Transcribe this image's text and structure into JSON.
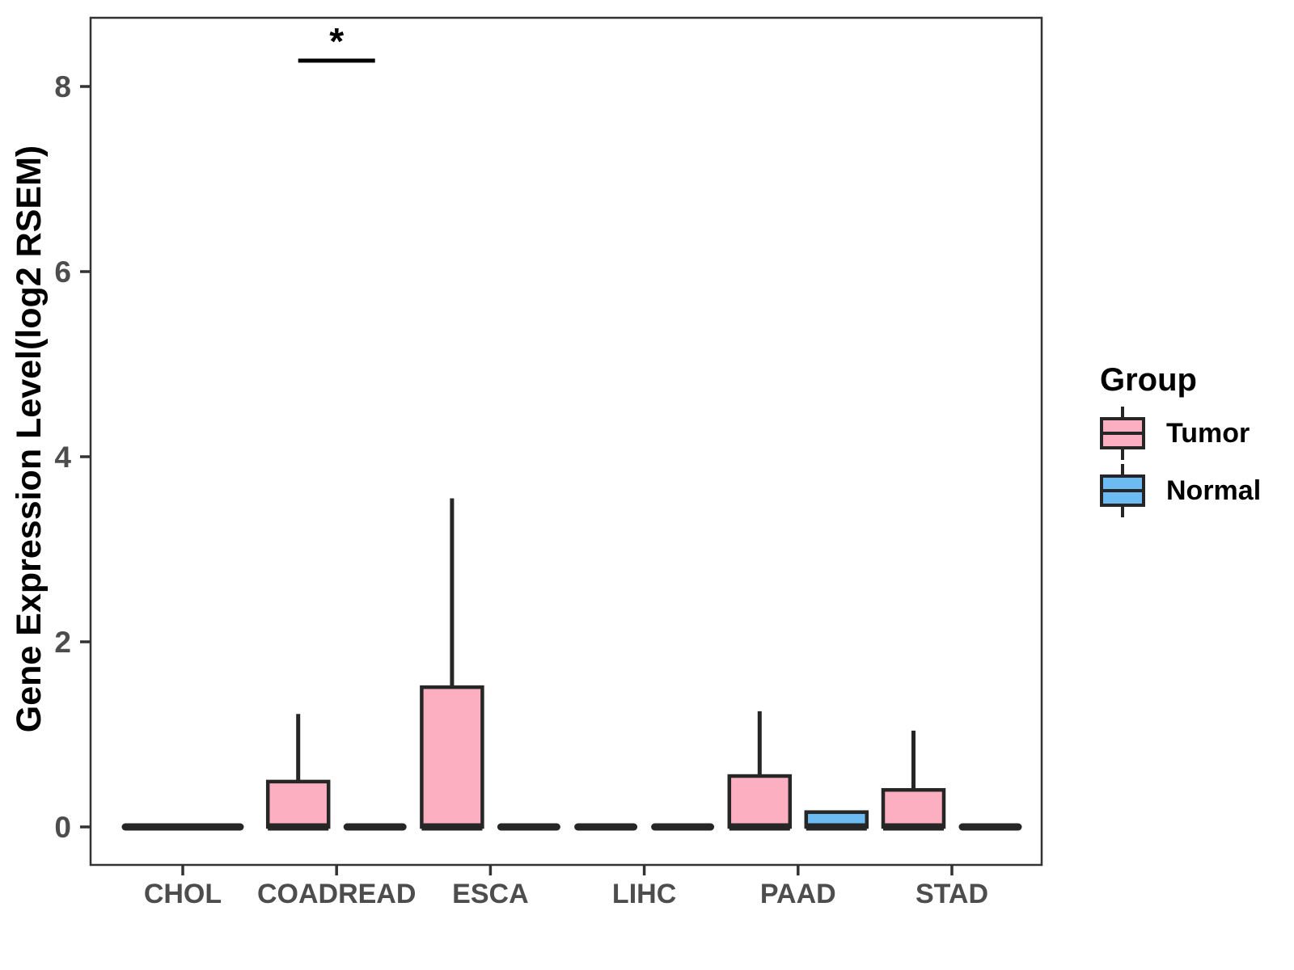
{
  "chart_data": {
    "type": "boxplot",
    "title": "",
    "xlabel": "",
    "ylabel": "Gene Expression Level(log2 RSEM)",
    "categories": [
      "CHOL",
      "COADREAD",
      "ESCA",
      "LIHC",
      "PAAD",
      "STAD"
    ],
    "yticks": [
      "0",
      "2",
      "4",
      "6",
      "8"
    ],
    "ylim": [
      -0.41,
      8.75
    ],
    "grid": false,
    "legend": {
      "title": "Group",
      "position": "right",
      "entries": [
        {
          "label": "Tumor",
          "color": "#FCAFC0"
        },
        {
          "label": "Normal",
          "color": "#6CBBF2"
        }
      ]
    },
    "colors": {
      "tumor": "#FCAFC0",
      "normal": "#6CBBF2",
      "box_border": "#262626",
      "axis": "#333333",
      "tick_label": "#4D4D4D",
      "annotation": "#000000"
    },
    "groups": [
      {
        "category": "CHOL",
        "boxes": [
          {
            "group": "Tumor",
            "full_width": true,
            "min": 0,
            "q1": 0,
            "median": 0,
            "q3": 0,
            "max": 0
          }
        ]
      },
      {
        "category": "COADREAD",
        "boxes": [
          {
            "group": "Tumor",
            "min": 0,
            "q1": 0,
            "median": 0,
            "q3": 0.49,
            "max": 1.22
          },
          {
            "group": "Normal",
            "min": 0,
            "q1": 0,
            "median": 0,
            "q3": 0,
            "max": 0
          }
        ]
      },
      {
        "category": "ESCA",
        "boxes": [
          {
            "group": "Tumor",
            "min": 0,
            "q1": 0,
            "median": 0,
            "q3": 1.51,
            "max": 3.55
          },
          {
            "group": "Normal",
            "min": 0,
            "q1": 0,
            "median": 0,
            "q3": 0,
            "max": 0
          }
        ]
      },
      {
        "category": "LIHC",
        "boxes": [
          {
            "group": "Tumor",
            "min": 0,
            "q1": 0,
            "median": 0,
            "q3": 0,
            "max": 0
          },
          {
            "group": "Normal",
            "min": 0,
            "q1": 0,
            "median": 0,
            "q3": 0,
            "max": 0
          }
        ]
      },
      {
        "category": "PAAD",
        "boxes": [
          {
            "group": "Tumor",
            "min": 0,
            "q1": 0,
            "median": 0,
            "q3": 0.55,
            "max": 1.25
          },
          {
            "group": "Normal",
            "min": 0,
            "q1": 0,
            "median": 0,
            "q3": 0.16,
            "max": 0.16
          }
        ]
      },
      {
        "category": "STAD",
        "boxes": [
          {
            "group": "Tumor",
            "min": 0,
            "q1": 0,
            "median": 0,
            "q3": 0.4,
            "max": 1.04
          },
          {
            "group": "Normal",
            "min": 0,
            "q1": 0,
            "median": 0,
            "q3": 0,
            "max": 0
          }
        ]
      }
    ],
    "annotations": [
      {
        "type": "significance",
        "category": "COADREAD",
        "label": "*",
        "y": 8.28
      }
    ]
  }
}
